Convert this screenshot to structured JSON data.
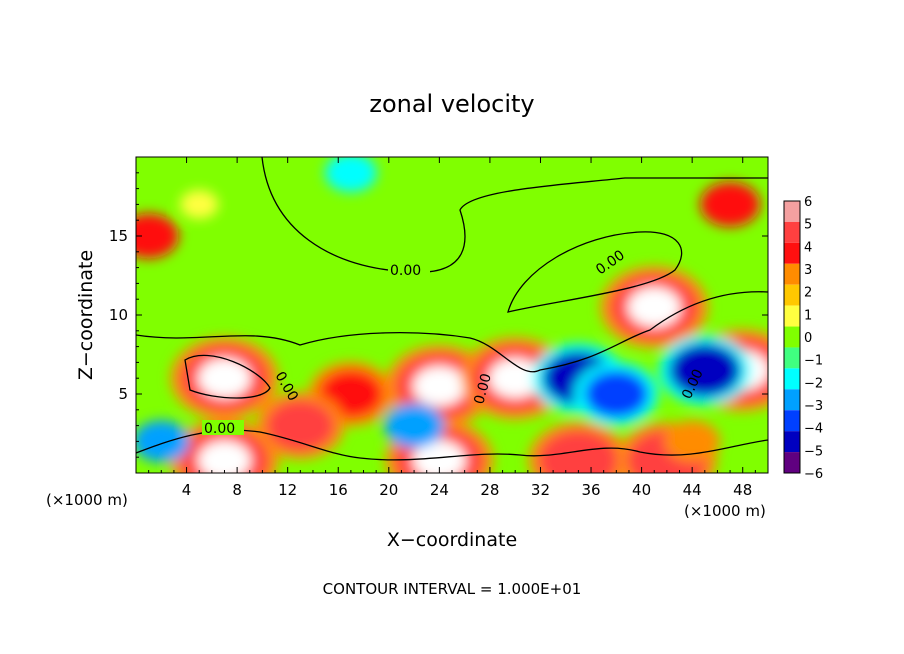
{
  "chart_data": {
    "type": "heatmap",
    "title": "zonal velocity",
    "xlabel": "X−coordinate",
    "ylabel": "Z−coordinate",
    "x_unit_left": "(×1000 m)",
    "x_unit_right": "(×1000 m)",
    "footer": "CONTOUR INTERVAL = 1.000E+01",
    "xlim": [
      0,
      50
    ],
    "ylim": [
      0,
      20
    ],
    "x_ticks": [
      4,
      8,
      12,
      16,
      20,
      24,
      28,
      32,
      36,
      40,
      44,
      48
    ],
    "y_ticks": [
      5,
      10,
      15
    ],
    "contour_label": "0.00",
    "colorbar": {
      "levels": [
        6,
        5,
        4,
        3,
        2,
        1,
        0,
        -1,
        -2,
        -3,
        -4,
        -5,
        -6
      ],
      "labels": [
        "6",
        "5",
        "4",
        "3",
        "2",
        "1",
        "0",
        "−1",
        "−2",
        "−3",
        "−4",
        "−5",
        "−6"
      ],
      "colors": [
        "#f4a0a0",
        "#ff4040",
        "#ff1010",
        "#ff8c00",
        "#ffc800",
        "#ffff40",
        "#80ff00",
        "#40ff80",
        "#00ffff",
        "#00a0ff",
        "#0040ff",
        "#0000c0",
        "#600080"
      ]
    },
    "features": [
      {
        "x": 5,
        "z": 17,
        "value": 0.8
      },
      {
        "x": 17,
        "z": 19,
        "value": -2.5
      },
      {
        "x": 47,
        "z": 17,
        "value": 3.5
      },
      {
        "x": 1,
        "z": 15,
        "value": 3.5
      },
      {
        "x": 7,
        "z": 6,
        "value": 7
      },
      {
        "x": 24,
        "z": 5.5,
        "value": 7
      },
      {
        "x": 30,
        "z": 6,
        "value": 7
      },
      {
        "x": 41,
        "z": 10.5,
        "value": 7
      },
      {
        "x": 48,
        "z": 6.5,
        "value": 7
      },
      {
        "x": 7,
        "z": 0.8,
        "value": 7
      },
      {
        "x": 24,
        "z": 0.8,
        "value": 7
      },
      {
        "x": 35,
        "z": 0.8,
        "value": 6
      },
      {
        "x": 42,
        "z": 0.8,
        "value": 6
      },
      {
        "x": 35,
        "z": 6,
        "value": -5
      },
      {
        "x": 38,
        "z": 5,
        "value": -4
      },
      {
        "x": 45,
        "z": 6.5,
        "value": -5
      },
      {
        "x": 2,
        "z": 2,
        "value": -3
      },
      {
        "x": 22,
        "z": 3,
        "value": -3.5
      },
      {
        "x": 17,
        "z": 5,
        "value": 4
      },
      {
        "x": 13,
        "z": 3,
        "value": 4.5
      },
      {
        "x": 44,
        "z": 2,
        "value": 3
      }
    ]
  }
}
